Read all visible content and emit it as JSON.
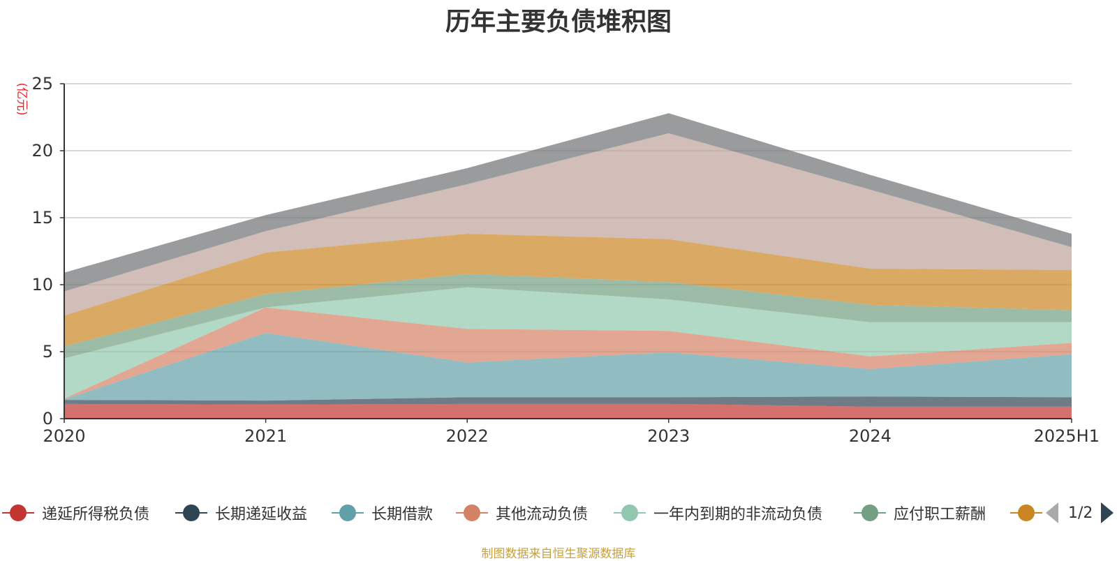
{
  "chart_data": {
    "type": "area",
    "stacked": true,
    "title": "历年主要负债堆积图",
    "ylabel": "(亿元)",
    "xlabel": "",
    "categories": [
      "2020",
      "2021",
      "2022",
      "2023",
      "2024",
      "2025H1"
    ],
    "ylim": [
      0,
      25
    ],
    "yticks": [
      0,
      5,
      10,
      15,
      20,
      25
    ],
    "grid": true,
    "legend_position": "bottom",
    "series": [
      {
        "name": "递延所得税负债",
        "color": "#c23531",
        "values": [
          1.1,
          1.05,
          1.1,
          1.1,
          0.9,
          0.9
        ]
      },
      {
        "name": "长期递延收益",
        "color": "#2f4554",
        "values": [
          0.3,
          0.3,
          0.5,
          0.5,
          0.75,
          0.7
        ]
      },
      {
        "name": "长期借款",
        "color": "#61a0a8",
        "values": [
          0.05,
          5.05,
          2.6,
          3.35,
          2.05,
          3.2
        ]
      },
      {
        "name": "其他流动负债",
        "color": "#d48265",
        "values": [
          0.05,
          1.9,
          2.5,
          1.6,
          0.95,
          0.85
        ]
      },
      {
        "name": "一年内到期的非流动负债",
        "color": "#91c7ae",
        "values": [
          3.0,
          0.0,
          3.1,
          2.35,
          2.55,
          1.55
        ]
      },
      {
        "name": "应付职工薪酬",
        "color": "#749f83",
        "values": [
          0.9,
          1.0,
          1.0,
          1.3,
          1.3,
          0.9
        ]
      },
      {
        "name": "",
        "color": "#ca8622",
        "values": [
          2.3,
          3.1,
          3.0,
          3.2,
          2.7,
          3.0
        ]
      },
      {
        "name": "",
        "color": "#bda29a",
        "values": [
          1.8,
          1.6,
          3.7,
          7.9,
          5.9,
          1.7
        ]
      },
      {
        "name": "",
        "color": "#6e7074",
        "values": [
          1.4,
          1.2,
          1.2,
          1.5,
          1.1,
          1.0
        ]
      }
    ]
  },
  "legend": {
    "page": "1/2",
    "visible_items": [
      {
        "name": "递延所得税负债",
        "color": "#c23531"
      },
      {
        "name": "长期递延收益",
        "color": "#2f4554"
      },
      {
        "name": "长期借款",
        "color": "#61a0a8"
      },
      {
        "name": "其他流动负债",
        "color": "#d48265"
      },
      {
        "name": "一年内到期的非流动负债",
        "color": "#91c7ae"
      },
      {
        "name": "应付职工薪酬",
        "color": "#749f83"
      },
      {
        "name": "",
        "color": "#ca8622"
      }
    ]
  },
  "source_note": "制图数据来自恒生聚源数据库",
  "colors": {
    "axis_label_red": "#e8262a",
    "source_note": "#c8a03c"
  }
}
